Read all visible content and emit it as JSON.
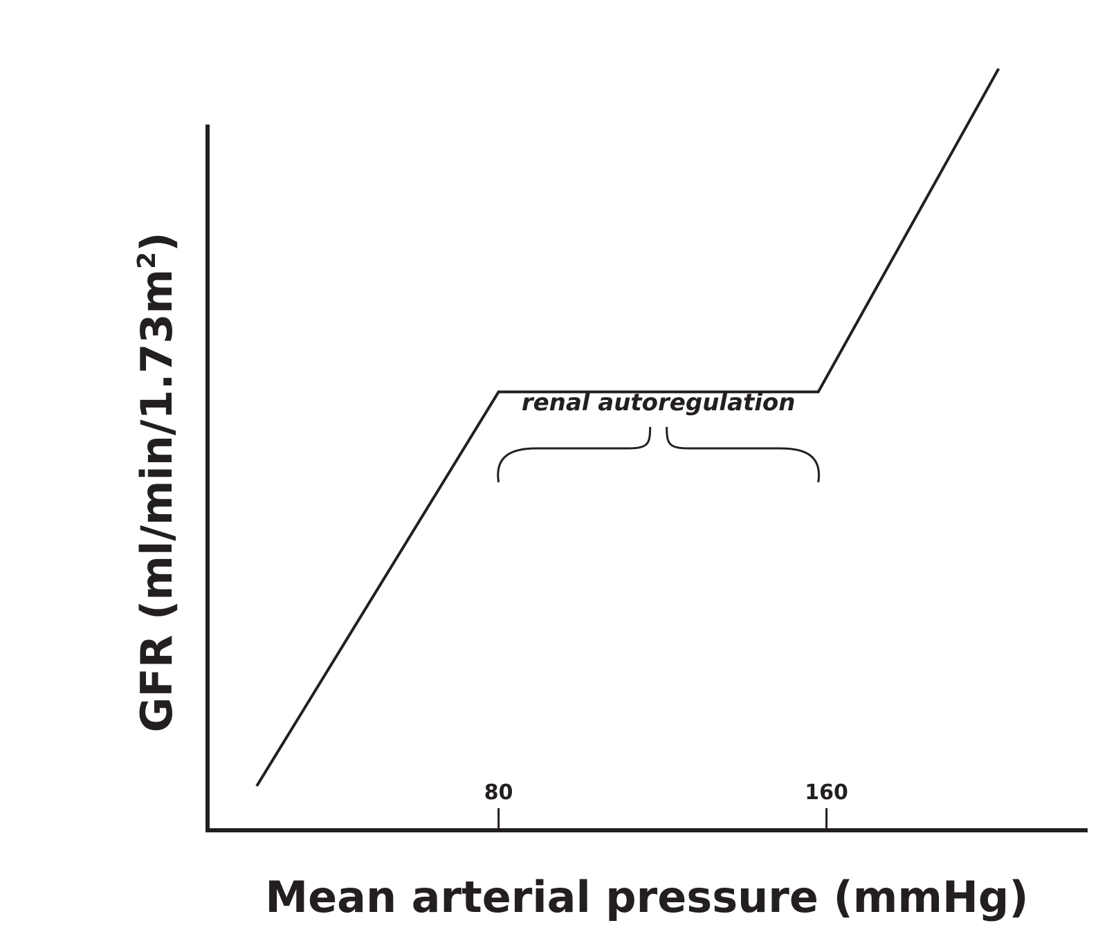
{
  "chart_data": {
    "type": "line",
    "title": "",
    "xlabel": "Mean arterial pressure (mmHg)",
    "ylabel_main": "GFR (ml/min/1.73m",
    "ylabel_sup": "2",
    "ylabel_close": ")",
    "x_ticks": [
      {
        "value": 80,
        "label": "80"
      },
      {
        "value": 160,
        "label": "160"
      }
    ],
    "xlim": [
      9,
      220
    ],
    "ylim": [
      0,
      100
    ],
    "grid": false,
    "series": [
      {
        "points": [
          [
            21,
            10
          ],
          [
            80,
            99
          ],
          [
            158,
            99
          ],
          [
            202,
            172
          ]
        ]
      }
    ],
    "annotations": [
      {
        "text": "renal autoregulation",
        "x_start": 80,
        "x_end": 158
      }
    ],
    "colors": {
      "ink": "#231f20",
      "background": "#ffffff"
    }
  }
}
